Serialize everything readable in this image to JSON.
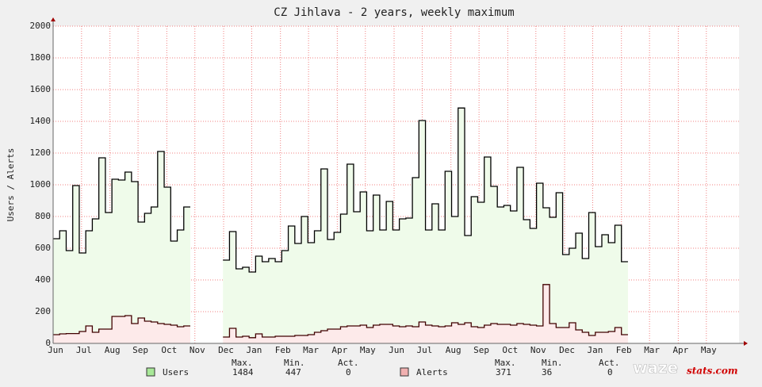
{
  "chart_data": {
    "type": "step-area",
    "title": "CZ Jihlava - 2 years, weekly maximum",
    "y_label": "Users / Alerts",
    "x": [
      0,
      1,
      2,
      3,
      4,
      5,
      6,
      7,
      8,
      9,
      10,
      11,
      12,
      13,
      14,
      15,
      16,
      17,
      18,
      19,
      20,
      21,
      22,
      23,
      24,
      25,
      26,
      27,
      28,
      29,
      30,
      31,
      32,
      33,
      34,
      35,
      36,
      37,
      38,
      39,
      40,
      41,
      42,
      43,
      44,
      45,
      46,
      47,
      48,
      49,
      50,
      51,
      52,
      53,
      54,
      55,
      56,
      57,
      58,
      59,
      60,
      61,
      62,
      63,
      64,
      65,
      66,
      67,
      68,
      69,
      70,
      71,
      72,
      73,
      74,
      75,
      76,
      77,
      78,
      79,
      80,
      81,
      82,
      83,
      84,
      85,
      86,
      87
    ],
    "series": [
      {
        "name": "Users",
        "color": "#000000",
        "fill": "#effbea",
        "swatch": "#a8e898",
        "values": [
          660,
          710,
          585,
          995,
          570,
          710,
          785,
          1170,
          825,
          1035,
          1030,
          1080,
          1020,
          765,
          820,
          860,
          1210,
          985,
          645,
          715,
          860,
          null,
          null,
          null,
          null,
          null,
          525,
          705,
          470,
          480,
          450,
          550,
          515,
          535,
          515,
          585,
          740,
          630,
          800,
          635,
          710,
          1100,
          655,
          700,
          815,
          1130,
          830,
          955,
          710,
          935,
          715,
          895,
          715,
          785,
          790,
          1045,
          1405,
          715,
          880,
          715,
          1085,
          800,
          1484,
          680,
          925,
          890,
          1175,
          990,
          860,
          870,
          835,
          1110,
          780,
          725,
          1010,
          855,
          795,
          950,
          560,
          600,
          695,
          535,
          825,
          610,
          685,
          635,
          745,
          515
        ],
        "stats": [
          "1484",
          "447",
          "0"
        ]
      },
      {
        "name": "Alerts",
        "color": "#400000",
        "fill": "#fdeaea",
        "swatch": "#f0b0b0",
        "values": [
          55,
          60,
          62,
          62,
          75,
          110,
          70,
          90,
          90,
          170,
          170,
          175,
          125,
          160,
          140,
          135,
          125,
          120,
          115,
          105,
          110,
          null,
          null,
          null,
          null,
          null,
          40,
          95,
          40,
          45,
          36,
          60,
          40,
          40,
          45,
          45,
          45,
          50,
          50,
          55,
          70,
          80,
          90,
          90,
          105,
          110,
          110,
          115,
          100,
          115,
          120,
          120,
          110,
          105,
          110,
          105,
          135,
          115,
          110,
          105,
          110,
          130,
          120,
          130,
          105,
          100,
          115,
          125,
          120,
          120,
          115,
          125,
          120,
          115,
          110,
          371,
          125,
          100,
          100,
          130,
          85,
          70,
          50,
          70,
          70,
          75,
          100,
          55
        ],
        "stats": [
          "371",
          "36",
          "0"
        ]
      }
    ],
    "stat_headers": [
      "Max.",
      "Min.",
      "Act."
    ],
    "xlim": [
      0,
      105
    ],
    "xticks": [
      {
        "value": 0,
        "label": "Jun"
      },
      {
        "value": 4.35,
        "label": "Jul"
      },
      {
        "value": 8.7,
        "label": "Aug"
      },
      {
        "value": 13,
        "label": "Sep"
      },
      {
        "value": 17.4,
        "label": "Oct"
      },
      {
        "value": 21.7,
        "label": "Nov"
      },
      {
        "value": 26.1,
        "label": "Dec"
      },
      {
        "value": 30.4,
        "label": "Jan"
      },
      {
        "value": 34.8,
        "label": "Feb"
      },
      {
        "value": 39.1,
        "label": "Mar"
      },
      {
        "value": 43.5,
        "label": "Apr"
      },
      {
        "value": 47.8,
        "label": "May"
      },
      {
        "value": 52.2,
        "label": "Jun"
      },
      {
        "value": 56.5,
        "label": "Jul"
      },
      {
        "value": 60.9,
        "label": "Aug"
      },
      {
        "value": 65.2,
        "label": "Sep"
      },
      {
        "value": 69.6,
        "label": "Oct"
      },
      {
        "value": 73.9,
        "label": "Nov"
      },
      {
        "value": 78.3,
        "label": "Dec"
      },
      {
        "value": 82.6,
        "label": "Jan"
      },
      {
        "value": 87,
        "label": "Feb"
      },
      {
        "value": 91.3,
        "label": "Mar"
      },
      {
        "value": 95.7,
        "label": "Apr"
      },
      {
        "value": 100,
        "label": "May"
      }
    ],
    "ylim": [
      0,
      2000
    ],
    "yticks": [
      0,
      200,
      400,
      600,
      800,
      1000,
      1200,
      1400,
      1600,
      1800,
      2000
    ],
    "grid": true,
    "watermark": [
      "waze",
      "stats.com"
    ]
  }
}
